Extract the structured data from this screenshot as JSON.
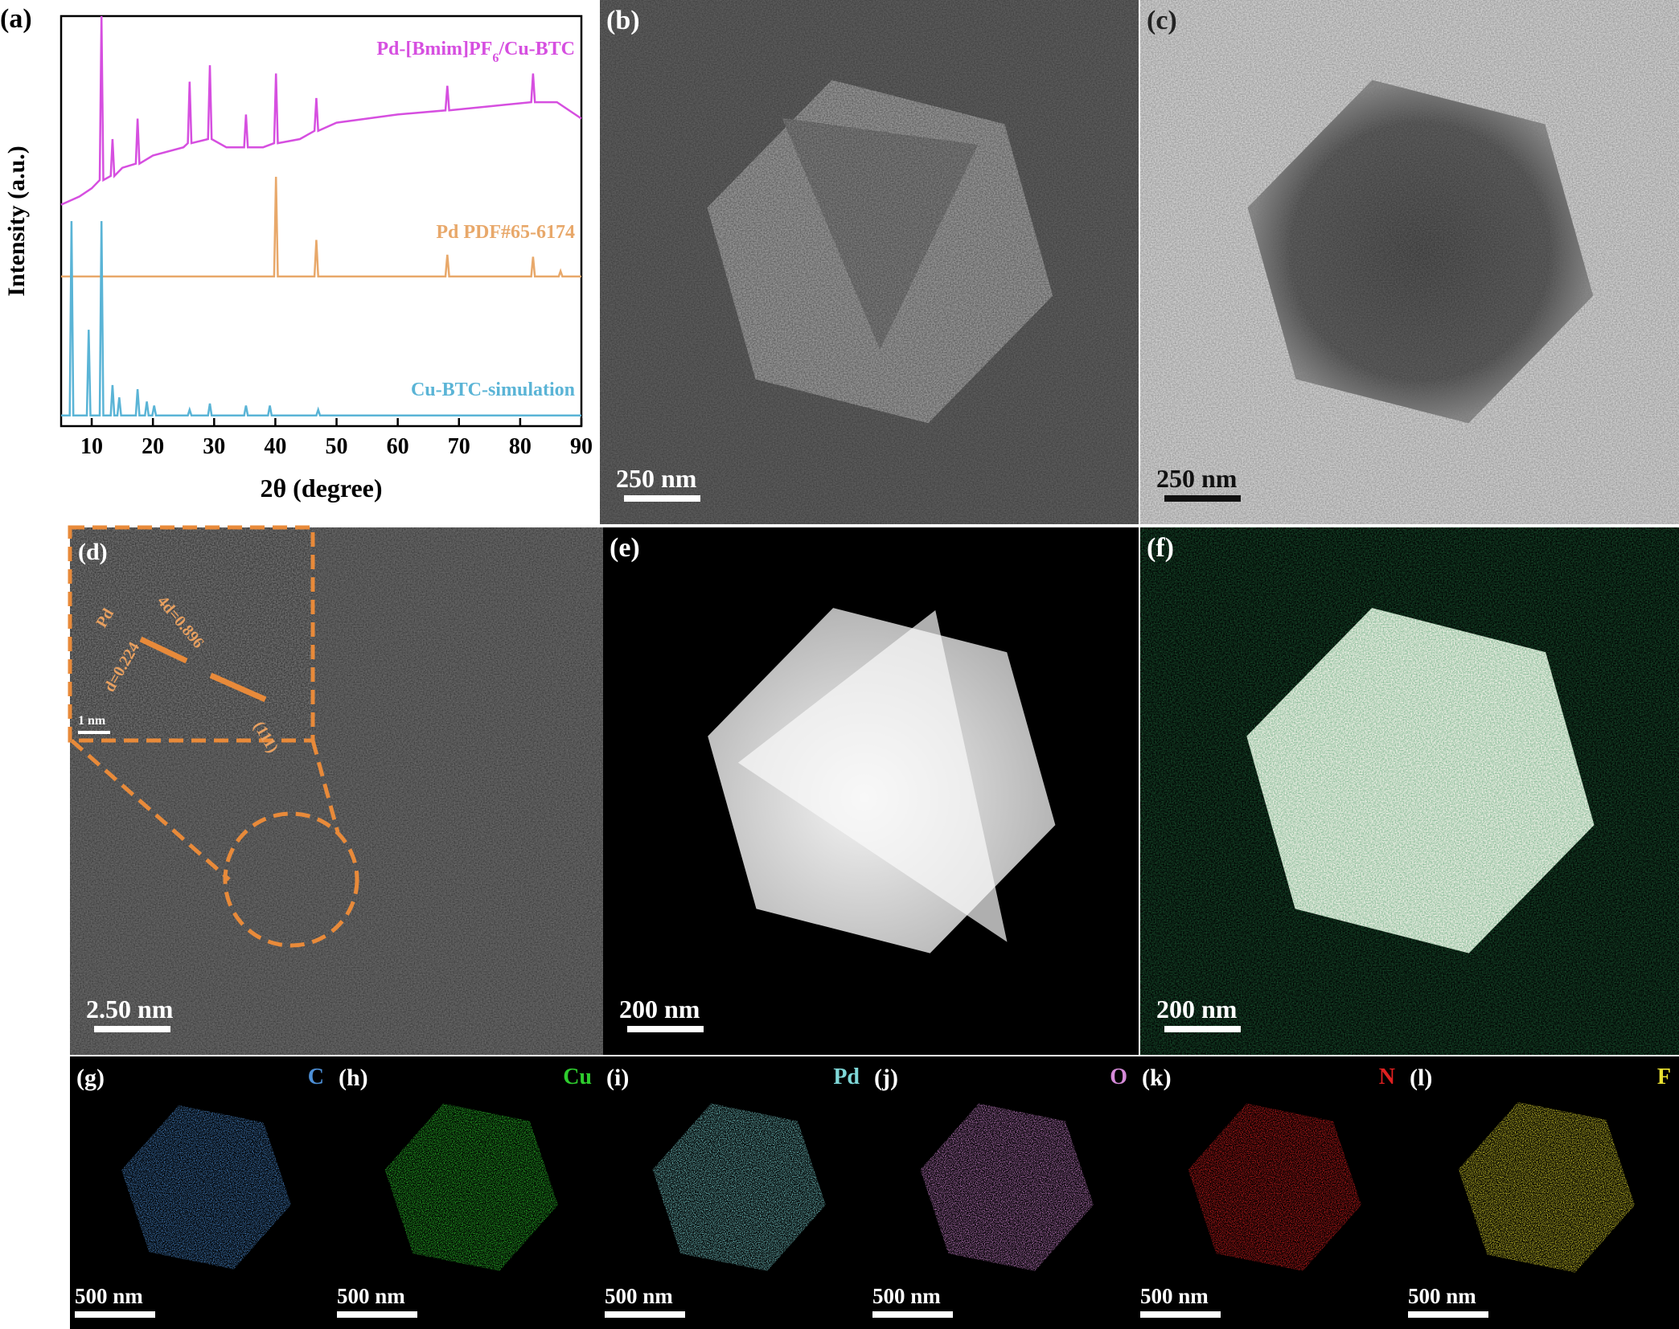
{
  "chart_data": {
    "type": "line",
    "panel_label": "(a)",
    "xlabel": "2θ (degree)",
    "ylabel": "Intensity (a.u.)",
    "xlim": [
      5,
      90
    ],
    "ylim": [
      0,
      100
    ],
    "xticks": [
      10,
      20,
      30,
      40,
      50,
      60,
      70,
      80,
      90
    ],
    "series": [
      {
        "name": "Pd-[Bmim]PF6/Cu-BTC",
        "color": "#d64fe0",
        "x": [
          5,
          8,
          10,
          11.3,
          11.6,
          11.9,
          13.1,
          13.4,
          13.7,
          15,
          17.2,
          17.5,
          17.8,
          20,
          25,
          25.7,
          26,
          26.3,
          29,
          29.3,
          29.6,
          32,
          34.9,
          35.2,
          35.5,
          38,
          39.8,
          40.1,
          40.4,
          44,
          46.4,
          46.7,
          47,
          50,
          55,
          60,
          67.8,
          68.1,
          68.4,
          75,
          81.8,
          82.1,
          82.4,
          86,
          90
        ],
        "values": [
          54,
          56,
          58,
          60,
          100,
          60,
          61,
          70,
          61,
          63,
          64,
          75,
          64,
          66,
          68,
          69,
          84,
          69,
          70,
          88,
          70,
          68,
          68,
          76,
          68,
          68,
          69,
          86,
          69,
          70,
          72,
          80,
          72,
          74,
          75,
          76,
          77,
          83,
          77,
          78,
          79,
          86,
          79,
          79,
          75
        ]
      },
      {
        "name": "Pd PDF#65-6174",
        "color": "#e8a86a",
        "x": [
          5,
          39.8,
          40.1,
          40.4,
          46.4,
          46.7,
          47.0,
          67.8,
          68.1,
          68.4,
          81.8,
          82.1,
          82.4,
          86.3,
          86.6,
          86.9,
          90
        ],
        "values": [
          36.5,
          36.5,
          60.8,
          36.5,
          36.5,
          45.4,
          36.5,
          36.5,
          41.8,
          36.5,
          36.5,
          41.3,
          36.5,
          36.5,
          37.8,
          36.5,
          36.5
        ]
      },
      {
        "name": "Cu-BTC-simulation",
        "color": "#5ab4d6",
        "x": [
          5,
          6.4,
          6.7,
          7.0,
          9.2,
          9.5,
          9.8,
          11.3,
          11.6,
          11.9,
          13.1,
          13.4,
          13.7,
          14.2,
          14.5,
          14.8,
          17.2,
          17.5,
          17.8,
          18.7,
          19,
          19.3,
          19.9,
          20.2,
          20.5,
          25.7,
          26,
          26.3,
          29,
          29.3,
          29.6,
          34.9,
          35.2,
          35.5,
          38.8,
          39.1,
          39.4,
          46.7,
          47,
          47.3,
          90
        ],
        "values": [
          2.6,
          2.6,
          50,
          2.6,
          2.6,
          23.5,
          2.6,
          2.6,
          50,
          2.6,
          2.6,
          10,
          2.6,
          2.6,
          7,
          2.6,
          2.6,
          9,
          2.6,
          2.6,
          6,
          2.6,
          2.6,
          5,
          2.6,
          2.6,
          4,
          2.6,
          2.6,
          5.5,
          2.6,
          2.6,
          5,
          2.6,
          2.6,
          5,
          2.6,
          2.6,
          4,
          2.6,
          2.6
        ]
      }
    ]
  },
  "panels": [
    {
      "label": "(b)",
      "scale_bar": "250 nm"
    },
    {
      "label": "(c)",
      "scale_bar": "250 nm"
    },
    {
      "label": "(d)",
      "scale_bar": "2.50 nm",
      "inset": {
        "labels": [
          "Pd",
          "4d=0.896",
          "d=0.224",
          "(111)"
        ],
        "scale_bar": "1 nm"
      }
    },
    {
      "label": "(e)",
      "scale_bar": "200 nm"
    },
    {
      "label": "(f)",
      "scale_bar": "200 nm"
    },
    {
      "label": "(g)",
      "element": "C",
      "color": "#4d8fd6",
      "scale_bar": "500 nm"
    },
    {
      "label": "(h)",
      "element": "Cu",
      "color": "#2ecc2e",
      "scale_bar": "500 nm"
    },
    {
      "label": "(i)",
      "element": "Pd",
      "color": "#7fd8d8",
      "scale_bar": "500 nm"
    },
    {
      "label": "(j)",
      "element": "O",
      "color": "#d58ad8",
      "scale_bar": "500 nm"
    },
    {
      "label": "(k)",
      "element": "N",
      "color": "#e02020",
      "scale_bar": "500 nm"
    },
    {
      "label": "(l)",
      "element": "F",
      "color": "#e8e030",
      "scale_bar": "500 nm"
    }
  ]
}
